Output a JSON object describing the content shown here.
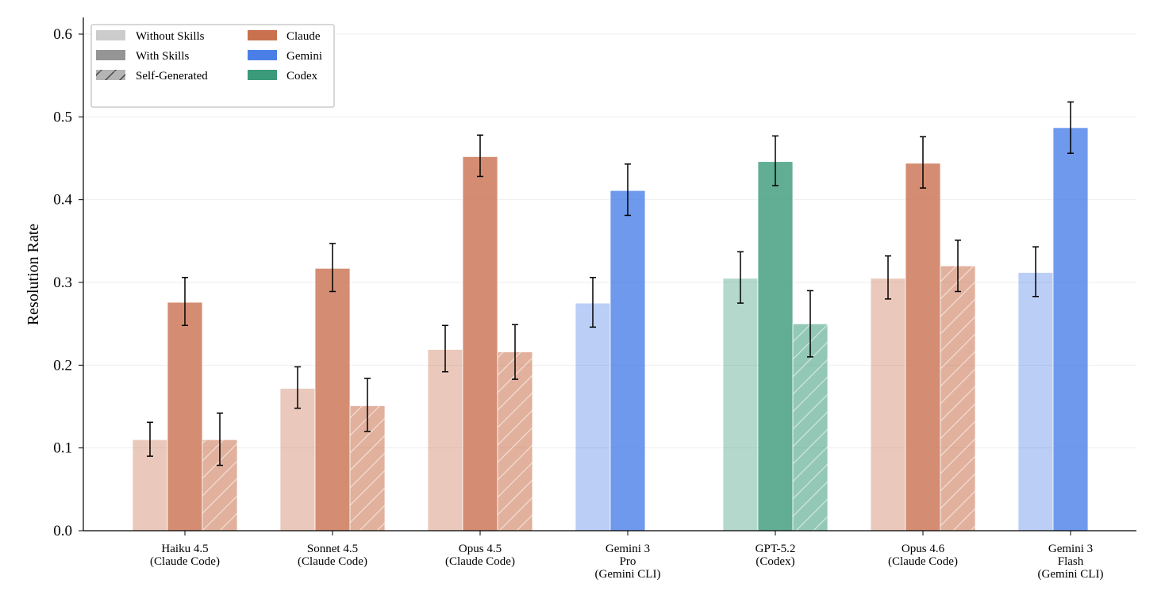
{
  "chart_data": {
    "type": "bar",
    "ylabel": "Resolution Rate",
    "xlabel": "",
    "ylim": [
      0,
      0.62
    ],
    "yticks": [
      "0.0",
      "0.1",
      "0.2",
      "0.3",
      "0.4",
      "0.5",
      "0.6"
    ],
    "grid": "horizontal",
    "legend_placement": "top-left",
    "legend": {
      "conditions": [
        "Without Skills",
        "With Skills",
        "Self-Generated"
      ],
      "families": [
        {
          "name": "Claude",
          "color": "#c9714f"
        },
        {
          "name": "Gemini",
          "color": "#4a7fe8"
        },
        {
          "name": "Codex",
          "color": "#3a9a7a"
        }
      ]
    },
    "categories": [
      {
        "label": [
          "Haiku 4.5",
          "(Claude Code)"
        ],
        "family": "Claude",
        "without": 0.11,
        "without_err": [
          0.09,
          0.131
        ],
        "with": 0.276,
        "with_err": [
          0.248,
          0.306
        ],
        "self": 0.11,
        "self_err": [
          0.079,
          0.142
        ]
      },
      {
        "label": [
          "Sonnet 4.5",
          "(Claude Code)"
        ],
        "family": "Claude",
        "without": 0.172,
        "without_err": [
          0.148,
          0.198
        ],
        "with": 0.317,
        "with_err": [
          0.289,
          0.347
        ],
        "self": 0.151,
        "self_err": [
          0.12,
          0.184
        ]
      },
      {
        "label": [
          "Opus 4.5",
          "(Claude Code)"
        ],
        "family": "Claude",
        "without": 0.219,
        "without_err": [
          0.192,
          0.248
        ],
        "with": 0.452,
        "with_err": [
          0.428,
          0.478
        ],
        "self": 0.216,
        "self_err": [
          0.183,
          0.249
        ]
      },
      {
        "label": [
          "Gemini 3",
          "Pro",
          "(Gemini CLI)"
        ],
        "family": "Gemini",
        "without": 0.275,
        "without_err": [
          0.246,
          0.306
        ],
        "with": 0.411,
        "with_err": [
          0.381,
          0.443
        ]
      },
      {
        "label": [
          "GPT-5.2",
          "(Codex)"
        ],
        "family": "Codex",
        "without": 0.305,
        "without_err": [
          0.275,
          0.337
        ],
        "with": 0.446,
        "with_err": [
          0.417,
          0.477
        ],
        "self": 0.25,
        "self_err": [
          0.21,
          0.29
        ]
      },
      {
        "label": [
          "Opus 4.6",
          "(Claude Code)"
        ],
        "family": "Claude",
        "without": 0.305,
        "without_err": [
          0.28,
          0.332
        ],
        "with": 0.444,
        "with_err": [
          0.414,
          0.476
        ],
        "self": 0.32,
        "self_err": [
          0.289,
          0.351
        ]
      },
      {
        "label": [
          "Gemini 3",
          "Flash",
          "(Gemini CLI)"
        ],
        "family": "Gemini",
        "without": 0.312,
        "without_err": [
          0.283,
          0.343
        ],
        "with": 0.487,
        "with_err": [
          0.456,
          0.518
        ]
      }
    ]
  }
}
